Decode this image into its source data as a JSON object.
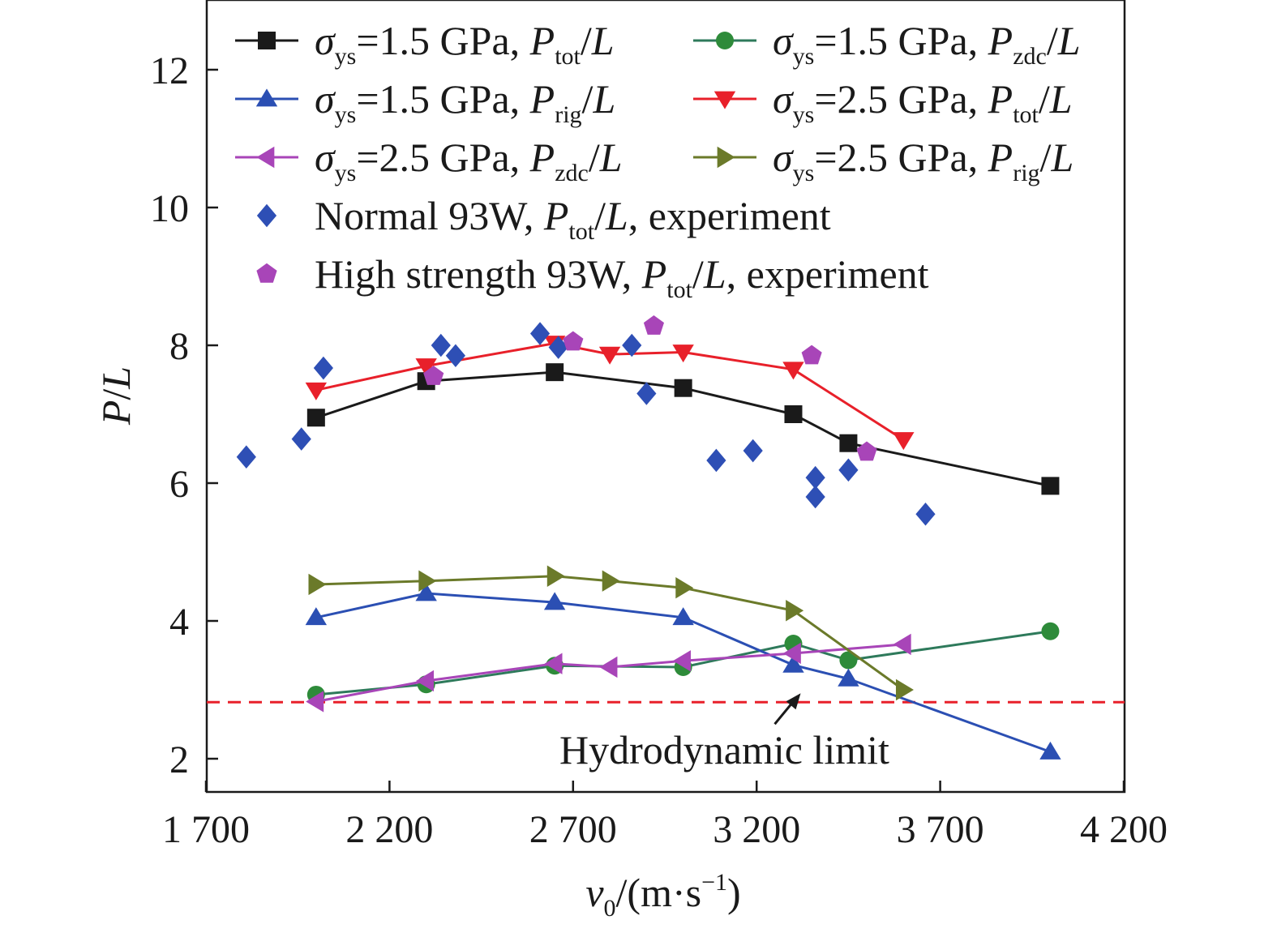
{
  "chart_data": {
    "type": "line",
    "xlabel": {
      "var": "v",
      "var_sub": "0",
      "unit_open": "/(m·s",
      "unit_sup": "−1",
      "unit_close": ")"
    },
    "ylabel": {
      "p": "P",
      "slash": "/",
      "l": "L"
    },
    "xlim": [
      1700,
      4200
    ],
    "ylim": [
      1,
      13
    ],
    "xticks": [
      1700,
      2200,
      2700,
      3200,
      3700,
      4200
    ],
    "xtick_labels": [
      "1 700",
      "2 200",
      "2 700",
      "3 200",
      "3 700",
      "4 200"
    ],
    "yticks": [
      2,
      4,
      6,
      8,
      10,
      12
    ],
    "ytick_labels": [
      "2",
      "4",
      "6",
      "8",
      "10",
      "12"
    ],
    "hydrodynamic_limit": {
      "y": 2.82,
      "color": "#e8202a",
      "label": "Hydrodynamic limit",
      "arrow_to": [
        3320,
        2.95
      ]
    },
    "legend_placement": "top",
    "series": [
      {
        "id": "s1",
        "name": "σys=1.5 GPa, Ptot/L",
        "color": "#1a1a1a",
        "marker": "square",
        "line": true,
        "x": [
          2000,
          2300,
          2650,
          3000,
          3300,
          3450,
          4000
        ],
        "y": [
          6.95,
          7.48,
          7.61,
          7.38,
          7.0,
          6.58,
          5.96
        ]
      },
      {
        "id": "s2",
        "name": "σys=1.5 GPa, Pzdc/L",
        "color": "#2e7a5b",
        "marker_color": "#2e8b3a",
        "marker": "circle",
        "line": true,
        "x": [
          2000,
          2300,
          2650,
          3000,
          3300,
          3450,
          4000
        ],
        "y": [
          2.93,
          3.08,
          3.35,
          3.33,
          3.67,
          3.43,
          3.85
        ]
      },
      {
        "id": "s3",
        "name": "σys=1.5 GPa, Prig/L",
        "color": "#2b4fb3",
        "marker": "triangle-up",
        "line": true,
        "x": [
          2000,
          2300,
          2650,
          3000,
          3300,
          3450,
          4000
        ],
        "y": [
          4.05,
          4.4,
          4.27,
          4.05,
          3.36,
          3.16,
          2.1
        ]
      },
      {
        "id": "s4",
        "name": "σys=2.5 GPa, Ptot/L",
        "color": "#e8202a",
        "marker": "triangle-down",
        "line": true,
        "x": [
          2000,
          2300,
          2650,
          2800,
          3000,
          3300,
          3600
        ],
        "y": [
          7.35,
          7.7,
          8.03,
          7.87,
          7.9,
          7.65,
          6.63
        ]
      },
      {
        "id": "s5",
        "name": "σys=2.5 GPa, Pzdc/L",
        "color": "#a845b8",
        "marker": "triangle-left",
        "line": true,
        "x": [
          2000,
          2300,
          2650,
          2800,
          3000,
          3300,
          3600
        ],
        "y": [
          2.83,
          3.13,
          3.38,
          3.33,
          3.42,
          3.53,
          3.66
        ]
      },
      {
        "id": "s6",
        "name": "σys=2.5 GPa, Prig/L",
        "color": "#6b7a2a",
        "marker": "triangle-right",
        "line": true,
        "x": [
          2000,
          2300,
          2650,
          2800,
          3000,
          3300,
          3600
        ],
        "y": [
          4.53,
          4.58,
          4.65,
          4.58,
          4.48,
          4.15,
          3.0
        ]
      },
      {
        "id": "s7",
        "name": "Normal 93W, Ptot/L, experiment",
        "color": "#2e4fb5",
        "marker": "diamond",
        "line": false,
        "x": [
          1810,
          1960,
          2020,
          2340,
          2380,
          2610,
          2660,
          2860,
          2900,
          3090,
          3190,
          3360,
          3360,
          3450,
          3660
        ],
        "y": [
          6.38,
          6.64,
          7.67,
          8.0,
          7.85,
          8.17,
          7.97,
          8.0,
          7.3,
          6.33,
          6.47,
          6.08,
          5.8,
          6.19,
          5.55
        ]
      },
      {
        "id": "s8",
        "name": "High strength 93W, Ptot/L, experiment",
        "color": "#a845b8",
        "marker": "pentagon",
        "line": false,
        "x": [
          2320,
          2700,
          2920,
          3350,
          3500
        ],
        "y": [
          7.55,
          8.05,
          8.28,
          7.85,
          6.45
        ]
      }
    ]
  },
  "legend": [
    {
      "sigma": "σ",
      "ys": "ys",
      "eq": "=1.5 GPa, ",
      "p": "P",
      "sub": "tot",
      "l": "/L"
    },
    {
      "sigma": "σ",
      "ys": "ys",
      "eq": "=1.5 GPa, ",
      "p": "P",
      "sub": "zdc",
      "l": "/L"
    },
    {
      "sigma": "σ",
      "ys": "ys",
      "eq": "=1.5 GPa, ",
      "p": "P",
      "sub": "rig",
      "l": "/L"
    },
    {
      "sigma": "σ",
      "ys": "ys",
      "eq": "=2.5 GPa, ",
      "p": "P",
      "sub": "tot",
      "l": "/L"
    },
    {
      "sigma": "σ",
      "ys": "ys",
      "eq": "=2.5 GPa, ",
      "p": "P",
      "sub": "zdc",
      "l": "/L"
    },
    {
      "sigma": "σ",
      "ys": "ys",
      "eq": "=2.5 GPa, ",
      "p": "P",
      "sub": "rig",
      "l": "/L"
    },
    {
      "pre": "Normal 93W, ",
      "p": "P",
      "sub": "tot",
      "l": "/L",
      "post": ", experiment"
    },
    {
      "pre": "High strength 93W, ",
      "p": "P",
      "sub": "tot",
      "l": "/L",
      "post": ", experiment"
    }
  ]
}
